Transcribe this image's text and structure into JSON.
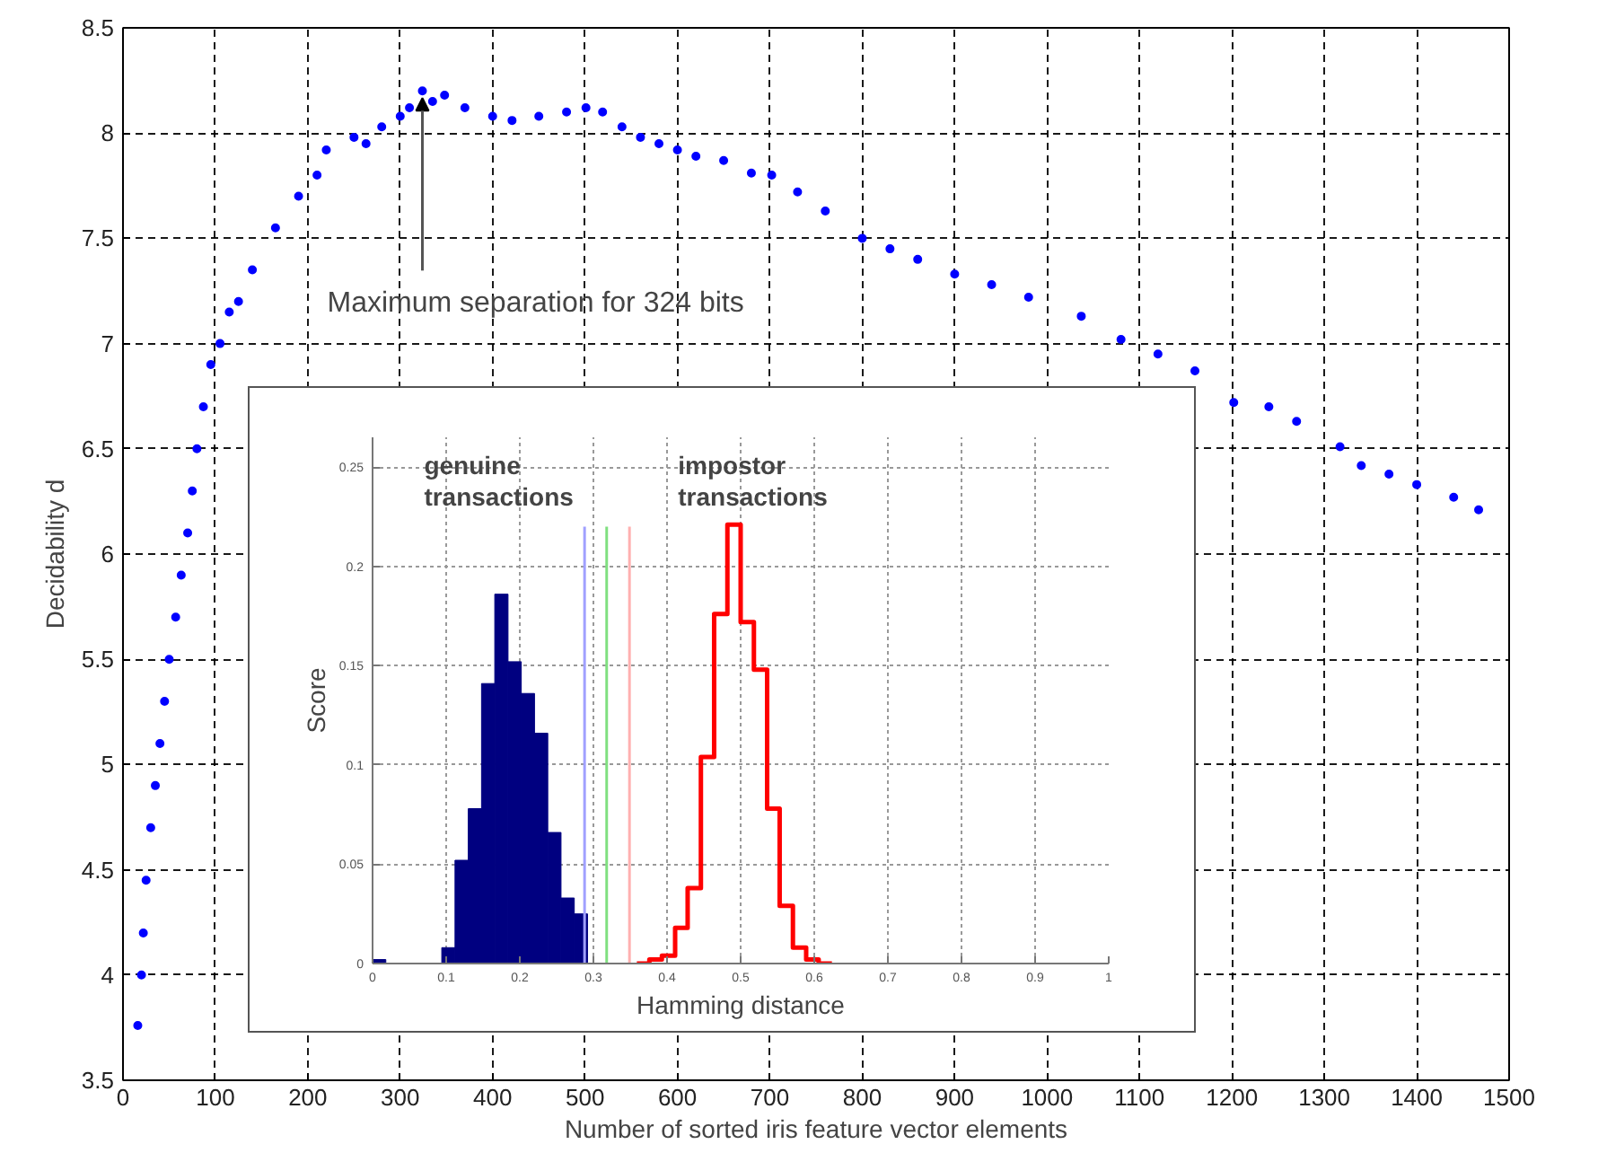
{
  "chart_data": [
    {
      "type": "scatter",
      "xlabel": "Number of sorted iris feature vector elements",
      "ylabel": "Decidability d",
      "xlim": [
        0,
        1500
      ],
      "ylim": [
        3.5,
        8.5
      ],
      "xticks": [
        0,
        100,
        200,
        300,
        400,
        500,
        600,
        700,
        800,
        900,
        1000,
        1100,
        1200,
        1300,
        1400,
        1500
      ],
      "yticks": [
        3.5,
        4,
        4.5,
        5,
        5.5,
        6,
        6.5,
        7,
        7.5,
        8,
        8.5
      ],
      "grid": true,
      "marker": "circle",
      "annotations": [
        {
          "text": "Maximum separation for 324 bits",
          "x": 324,
          "y": 8.2
        }
      ],
      "series": [
        {
          "color": "#0000ff",
          "x": [
            16,
            20,
            22,
            25,
            30,
            35,
            40,
            45,
            50,
            57,
            63,
            70,
            75,
            80,
            87,
            95,
            105,
            115,
            125,
            140,
            165,
            190,
            210,
            220,
            250,
            263,
            280,
            300,
            310,
            324,
            335,
            348,
            370,
            400,
            421,
            450,
            480,
            501,
            519,
            540,
            560,
            580,
            600,
            620,
            650,
            680,
            702,
            730,
            760,
            800,
            830,
            860,
            900,
            940,
            980,
            1037,
            1080,
            1120,
            1160,
            1202,
            1240,
            1270,
            1317,
            1340,
            1370,
            1400,
            1440,
            1467
          ],
          "values": [
            3.76,
            4.0,
            4.2,
            4.45,
            4.7,
            4.9,
            5.1,
            5.3,
            5.5,
            5.7,
            5.9,
            6.1,
            6.3,
            6.5,
            6.7,
            6.9,
            7.0,
            7.15,
            7.2,
            7.35,
            7.55,
            7.7,
            7.8,
            7.92,
            7.98,
            7.95,
            8.03,
            8.08,
            8.12,
            8.2,
            8.15,
            8.18,
            8.12,
            8.08,
            8.06,
            8.08,
            8.1,
            8.12,
            8.1,
            8.03,
            7.98,
            7.95,
            7.92,
            7.89,
            7.87,
            7.81,
            7.8,
            7.72,
            7.63,
            7.5,
            7.45,
            7.4,
            7.33,
            7.28,
            7.22,
            7.13,
            7.02,
            6.95,
            6.87,
            6.72,
            6.7,
            6.63,
            6.51,
            6.42,
            6.38,
            6.33,
            6.27,
            6.21
          ]
        }
      ]
    },
    {
      "type": "histogram",
      "xlabel": "Hamming distance",
      "ylabel": "Score",
      "xlim": [
        0,
        1
      ],
      "ylim": [
        0,
        0.265
      ],
      "xticks": [
        0,
        0.1,
        0.2,
        0.3,
        0.4,
        0.5,
        0.6,
        0.7,
        0.8,
        0.9,
        1
      ],
      "yticks": [
        0,
        0.05,
        0.1,
        0.15,
        0.2,
        0.25
      ],
      "grid": true,
      "annotations": [
        "genuine\ntransactions",
        "impostor\ntransactions"
      ],
      "series": [
        {
          "type": "histogram",
          "color": "#000080",
          "bins": [
            0,
            0.018,
            0.094,
            0.112,
            0.13,
            0.148,
            0.166,
            0.184,
            0.202,
            0.22,
            0.238,
            0.256,
            0.274,
            0.292
          ],
          "values": [
            0.002,
            0,
            0.008,
            0.052,
            0.078,
            0.141,
            0.186,
            0.152,
            0.136,
            0.116,
            0.066,
            0.033,
            0.025
          ]
        },
        {
          "type": "step",
          "color": "#ff0000",
          "x": [
            0.359,
            0.376,
            0.393,
            0.411,
            0.428,
            0.446,
            0.464,
            0.482,
            0.5,
            0.518,
            0.536,
            0.553,
            0.571,
            0.589,
            0.606,
            0.624
          ],
          "values": [
            0,
            0.002,
            0.004,
            0.018,
            0.038,
            0.104,
            0.176,
            0.221,
            0.172,
            0.148,
            0.078,
            0.029,
            0.008,
            0.002,
            0,
            0
          ]
        },
        {
          "type": "line",
          "color": "#a0a0ff",
          "x": [
            0.288,
            0.288
          ],
          "values": [
            0,
            0.22
          ]
        },
        {
          "type": "line",
          "color": "#80e080",
          "x": [
            0.318,
            0.318
          ],
          "values": [
            0,
            0.22
          ]
        },
        {
          "type": "line",
          "color": "#ffb0b0",
          "x": [
            0.349,
            0.349
          ],
          "values": [
            0,
            0.22
          ]
        }
      ]
    }
  ]
}
